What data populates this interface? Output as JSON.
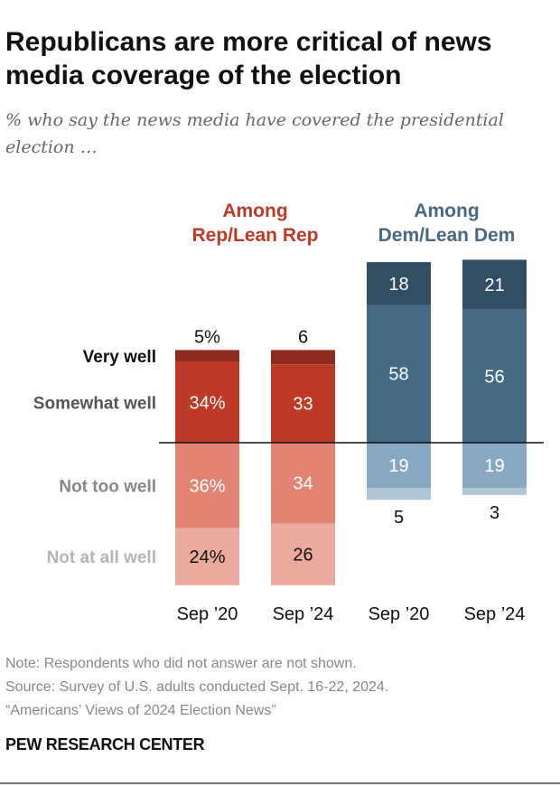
{
  "chart_data": {
    "type": "bar",
    "stacked": "diverging",
    "title": "Republicans are more critical of news media coverage of the election",
    "subtitle": "% who say the news media have covered the presidential election …",
    "groups": [
      {
        "label": "Among Rep/Lean Rep",
        "line1": "Among",
        "line2": "Rep/Lean Rep",
        "color": "#be3a26",
        "categories": [
          "Sep ’20",
          "Sep ’24"
        ]
      },
      {
        "label": "Among Dem/Lean Dem",
        "line1": "Among",
        "line2": "Dem/Lean Dem",
        "color": "#466a84",
        "categories": [
          "Sep ’20",
          "Sep ’24"
        ]
      }
    ],
    "series": [
      {
        "name": "Very well",
        "values": [
          5,
          6,
          18,
          21
        ],
        "labels": [
          "5%",
          "6",
          "18",
          "21"
        ],
        "colors": [
          "#8e2a1e",
          "#8e2a1e",
          "#324e63",
          "#324e63"
        ],
        "label_color": "#111111"
      },
      {
        "name": "Somewhat well",
        "values": [
          34,
          33,
          58,
          56
        ],
        "labels": [
          "34%",
          "33",
          "58",
          "56"
        ],
        "colors": [
          "#be3a26",
          "#be3a26",
          "#466a84",
          "#466a84"
        ],
        "label_color": "#555555"
      },
      {
        "name": "Not too well",
        "values": [
          36,
          34,
          19,
          19
        ],
        "labels": [
          "36%",
          "34",
          "19",
          "19"
        ],
        "colors": [
          "#e38373",
          "#e38373",
          "#87a8c0",
          "#87a8c0"
        ],
        "label_color": "#888888"
      },
      {
        "name": "Not at all well",
        "values": [
          24,
          26,
          5,
          3
        ],
        "labels": [
          "24%",
          "26",
          "5",
          "3"
        ],
        "colors": [
          "#eca99d",
          "#eca99d",
          "#b0c6d5",
          "#b0c6d5"
        ],
        "label_color": "#b5b5b5"
      }
    ],
    "grid": false,
    "legend": "left row labels"
  },
  "notes": {
    "note": "Note: Respondents who did not answer are not shown.",
    "source": "Source: Survey of U.S. adults conducted Sept. 16-22, 2024.",
    "report": "“Americans’ Views of 2024 Election News”"
  },
  "brand": "PEW RESEARCH CENTER"
}
